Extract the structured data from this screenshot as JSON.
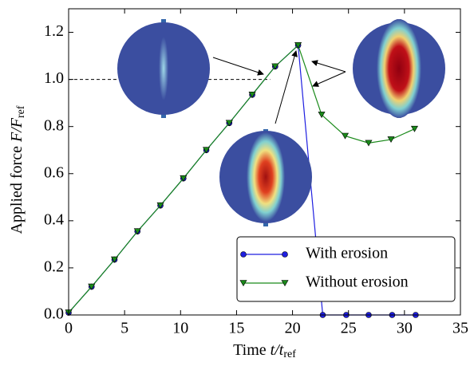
{
  "chart_data": {
    "type": "line",
    "xlabel": {
      "main": "Time ",
      "var": "t/t",
      "sub": "ref"
    },
    "ylabel": {
      "main": "Applied force ",
      "var": "F/F",
      "sub": "ref"
    },
    "xlim": [
      0,
      35
    ],
    "ylim": [
      0,
      1.3
    ],
    "xticks": [
      0,
      5,
      10,
      15,
      20,
      25,
      30,
      35
    ],
    "yticks": [
      {
        "value": 0,
        "label": "0.0"
      },
      0.2,
      0.4,
      0.6,
      0.8,
      {
        "value": 1,
        "label": "1.0"
      },
      1.2
    ],
    "legend": "lower right",
    "series": [
      {
        "name": "With erosion",
        "color": "#1f1fe0",
        "marker": "circle",
        "x": [
          0,
          2.05,
          4.1,
          6.15,
          8.2,
          10.25,
          12.3,
          14.35,
          16.4,
          18.45,
          20.5,
          22.7,
          24.8,
          26.8,
          28.9,
          31.0
        ],
        "values": [
          0.01,
          0.12,
          0.235,
          0.355,
          0.465,
          0.58,
          0.7,
          0.815,
          0.935,
          1.055,
          1.145,
          0,
          0,
          0,
          0,
          0
        ]
      },
      {
        "name": "Without erosion",
        "color": "#1a8a1a",
        "marker": "triangle",
        "x": [
          0,
          2.05,
          4.1,
          6.15,
          8.2,
          10.25,
          12.3,
          14.35,
          16.4,
          18.45,
          20.5,
          22.6,
          24.7,
          26.8,
          28.8,
          30.9
        ],
        "values": [
          0.01,
          0.12,
          0.235,
          0.355,
          0.465,
          0.58,
          0.7,
          0.815,
          0.935,
          1.055,
          1.145,
          0.85,
          0.76,
          0.73,
          0.745,
          0.79
        ]
      }
    ]
  }
}
